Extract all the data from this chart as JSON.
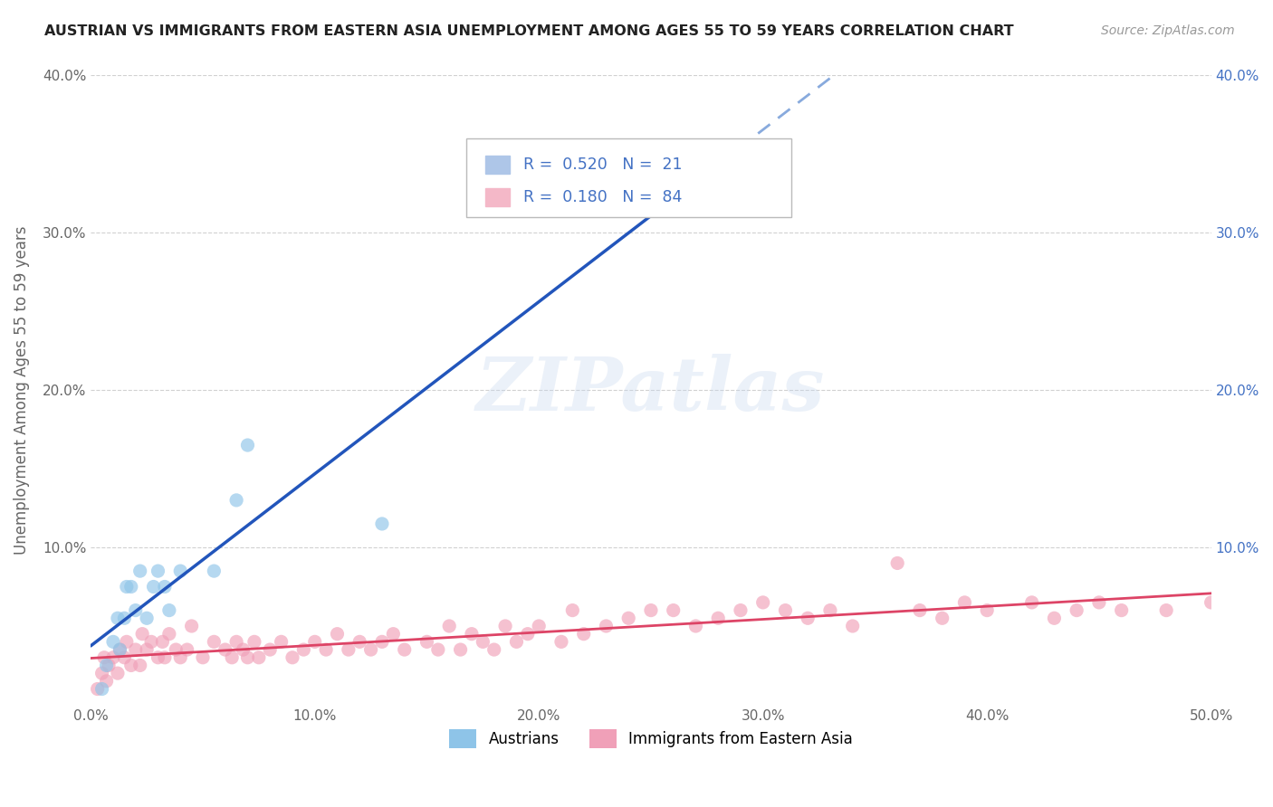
{
  "title": "AUSTRIAN VS IMMIGRANTS FROM EASTERN ASIA UNEMPLOYMENT AMONG AGES 55 TO 59 YEARS CORRELATION CHART",
  "source": "Source: ZipAtlas.com",
  "ylabel": "Unemployment Among Ages 55 to 59 years",
  "xlim": [
    0.0,
    0.5
  ],
  "ylim": [
    0.0,
    0.4
  ],
  "xticks": [
    0.0,
    0.1,
    0.2,
    0.3,
    0.4,
    0.5
  ],
  "yticks": [
    0.0,
    0.1,
    0.2,
    0.3,
    0.4
  ],
  "series1_label": "Austrians",
  "series2_label": "Immigrants from Eastern Asia",
  "series1_color": "#8ec4e8",
  "series2_color": "#f0a0b8",
  "trendline1_color": "#2255bb",
  "trendline2_color": "#dd4466",
  "trendline1_dashed_color": "#88aadd",
  "R1": 0.52,
  "N1": 21,
  "R2": 0.18,
  "N2": 84,
  "background_color": "#ffffff",
  "grid_color": "#cccccc",
  "watermark": "ZIPatlas",
  "series1_x": [
    0.005,
    0.007,
    0.01,
    0.012,
    0.013,
    0.015,
    0.016,
    0.018,
    0.02,
    0.022,
    0.025,
    0.028,
    0.03,
    0.033,
    0.035,
    0.04,
    0.055,
    0.065,
    0.07,
    0.13,
    0.26
  ],
  "series1_y": [
    0.01,
    0.025,
    0.04,
    0.055,
    0.035,
    0.055,
    0.075,
    0.075,
    0.06,
    0.085,
    0.055,
    0.075,
    0.085,
    0.075,
    0.06,
    0.085,
    0.085,
    0.13,
    0.165,
    0.115,
    0.335
  ],
  "series2_x": [
    0.003,
    0.005,
    0.006,
    0.007,
    0.008,
    0.01,
    0.012,
    0.013,
    0.015,
    0.016,
    0.018,
    0.02,
    0.022,
    0.023,
    0.025,
    0.027,
    0.03,
    0.032,
    0.033,
    0.035,
    0.038,
    0.04,
    0.043,
    0.045,
    0.05,
    0.055,
    0.06,
    0.063,
    0.065,
    0.068,
    0.07,
    0.073,
    0.075,
    0.08,
    0.085,
    0.09,
    0.095,
    0.1,
    0.105,
    0.11,
    0.115,
    0.12,
    0.125,
    0.13,
    0.135,
    0.14,
    0.15,
    0.155,
    0.16,
    0.165,
    0.17,
    0.175,
    0.18,
    0.185,
    0.19,
    0.195,
    0.2,
    0.21,
    0.215,
    0.22,
    0.23,
    0.24,
    0.25,
    0.26,
    0.27,
    0.28,
    0.29,
    0.3,
    0.31,
    0.32,
    0.33,
    0.34,
    0.36,
    0.37,
    0.38,
    0.39,
    0.4,
    0.42,
    0.43,
    0.44,
    0.45,
    0.46,
    0.48,
    0.5
  ],
  "series2_y": [
    0.01,
    0.02,
    0.03,
    0.015,
    0.025,
    0.03,
    0.02,
    0.035,
    0.03,
    0.04,
    0.025,
    0.035,
    0.025,
    0.045,
    0.035,
    0.04,
    0.03,
    0.04,
    0.03,
    0.045,
    0.035,
    0.03,
    0.035,
    0.05,
    0.03,
    0.04,
    0.035,
    0.03,
    0.04,
    0.035,
    0.03,
    0.04,
    0.03,
    0.035,
    0.04,
    0.03,
    0.035,
    0.04,
    0.035,
    0.045,
    0.035,
    0.04,
    0.035,
    0.04,
    0.045,
    0.035,
    0.04,
    0.035,
    0.05,
    0.035,
    0.045,
    0.04,
    0.035,
    0.05,
    0.04,
    0.045,
    0.05,
    0.04,
    0.06,
    0.045,
    0.05,
    0.055,
    0.06,
    0.06,
    0.05,
    0.055,
    0.06,
    0.065,
    0.06,
    0.055,
    0.06,
    0.05,
    0.09,
    0.06,
    0.055,
    0.065,
    0.06,
    0.065,
    0.055,
    0.06,
    0.065,
    0.06,
    0.06,
    0.065
  ],
  "trendline1_solid_end": 0.28,
  "right_axis_color": "#4472c4",
  "legend_box_color": "#aec6e8",
  "legend_box_color2": "#f4b8c8"
}
